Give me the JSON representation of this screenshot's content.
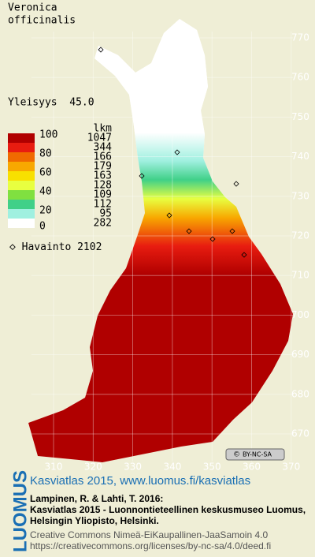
{
  "title": [
    "Veronica",
    "officinalis"
  ],
  "frequency": "Yleisyys  45.0",
  "legend": {
    "count_header": "lkm",
    "scale_labels": [
      "100",
      "80",
      "60",
      "40",
      "20",
      "0"
    ],
    "bands": [
      {
        "color": "#b00000",
        "count": "1047"
      },
      {
        "color": "#e81c10",
        "count": "344"
      },
      {
        "color": "#f06a00",
        "count": "166"
      },
      {
        "color": "#f8a800",
        "count": "179"
      },
      {
        "color": "#f8e000",
        "count": "163"
      },
      {
        "color": "#e8ff40",
        "count": "128"
      },
      {
        "color": "#80e040",
        "count": "109"
      },
      {
        "color": "#40d088",
        "count": "112"
      },
      {
        "color": "#a0f0e0",
        "count": "95"
      },
      {
        "color": "#ffffff",
        "count": "282"
      }
    ],
    "observations": "Havainto 2102"
  },
  "map": {
    "yticks": [
      770,
      760,
      750,
      740,
      730,
      720,
      710,
      700,
      690,
      680,
      670
    ],
    "xticks": [
      310,
      320,
      330,
      340,
      350,
      360,
      370
    ]
  },
  "license_badge": "BY-NC-SA",
  "footer": {
    "link": "Kasviatlas 2015, www.luomus.fi/kasviatlas",
    "citation": [
      "Lampinen, R. & Lahti, T. 2016:",
      "Kasviatlas 2015 - Luonnontieteellinen keskusmuseo Luomus,",
      "Helsingin Yliopisto, Helsinki."
    ],
    "license": [
      "Creative Commons Nimeä-EiKaupallinen-JaaSamoin 4.0",
      "https://creativecommons.org/licenses/by-nc-sa/4.0/deed.fi"
    ],
    "logo": "LUOMUS"
  }
}
